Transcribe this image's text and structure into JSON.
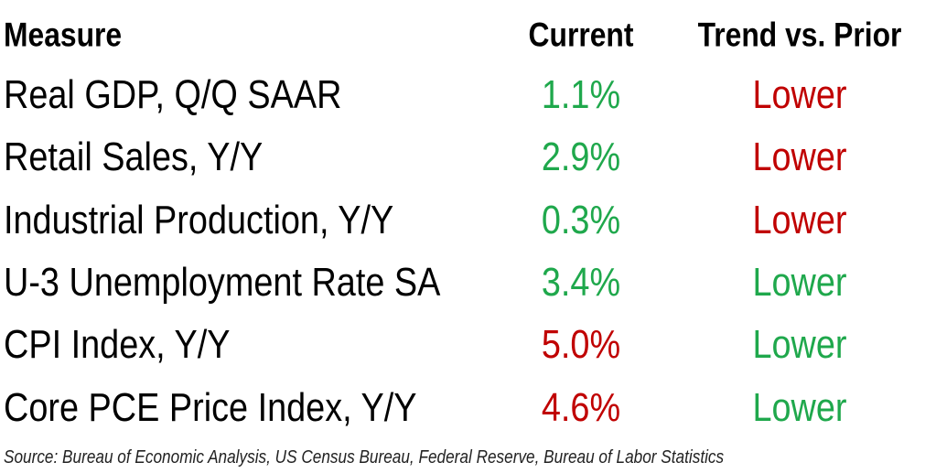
{
  "table": {
    "header": [
      "Measure",
      "Current",
      "Trend vs. Prior"
    ],
    "rows": [
      {
        "measure": "Real GDP, Q/Q SAAR",
        "current": "1.1%",
        "current_color": "#1fa84c",
        "trend": "Lower",
        "trend_color": "#c00000"
      },
      {
        "measure": "Retail Sales, Y/Y",
        "current": "2.9%",
        "current_color": "#1fa84c",
        "trend": "Lower",
        "trend_color": "#c00000"
      },
      {
        "measure": "Industrial Production, Y/Y",
        "current": "0.3%",
        "current_color": "#1fa84c",
        "trend": "Lower",
        "trend_color": "#c00000"
      },
      {
        "measure": "U-3 Unemployment Rate SA",
        "current": "3.4%",
        "current_color": "#1fa84c",
        "trend": "Lower",
        "trend_color": "#1fa84c"
      },
      {
        "measure": "CPI Index, Y/Y",
        "current": "5.0%",
        "current_color": "#c00000",
        "trend": "Lower",
        "trend_color": "#1fa84c"
      },
      {
        "measure": "Core PCE Price Index, Y/Y",
        "current": "4.6%",
        "current_color": "#c00000",
        "trend": "Lower",
        "trend_color": "#1fa84c"
      }
    ],
    "source": "Source: Bureau of Economic Analysis, US Census Bureau, Federal Reserve, Bureau of Labor Statistics"
  }
}
